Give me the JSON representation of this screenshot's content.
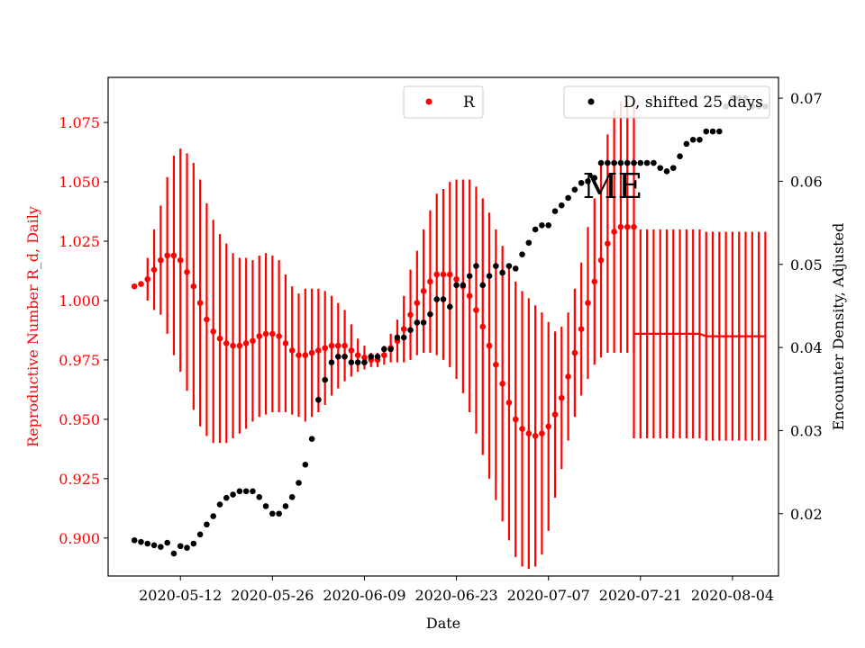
{
  "chart_data": {
    "type": "scatter",
    "xlabel": "Date",
    "ylabel_left": "Reproductive Number R_d, Daily",
    "ylabel_right": "Encounter Density, Adjusted",
    "annotation": "ME",
    "xlim": [
      "2020-05-01",
      "2020-08-11"
    ],
    "ylim_left": [
      0.884,
      1.094
    ],
    "ylim_right": [
      0.0125,
      0.0725
    ],
    "x_ticks": [
      "2020-05-12",
      "2020-05-26",
      "2020-06-09",
      "2020-06-23",
      "2020-07-07",
      "2020-07-21",
      "2020-08-04"
    ],
    "y_ticks_left": [
      0.9,
      0.925,
      0.95,
      0.975,
      1.0,
      1.025,
      1.05,
      1.075
    ],
    "y_tick_labels_left": [
      "0.900",
      "0.925",
      "0.950",
      "0.975",
      "1.000",
      "1.025",
      "1.050",
      "1.075"
    ],
    "y_ticks_right": [
      0.02,
      0.03,
      0.04,
      0.05,
      0.06,
      0.07
    ],
    "y_tick_labels_right": [
      "0.02",
      "0.03",
      "0.04",
      "0.05",
      "0.06",
      "0.07"
    ],
    "legend_left": {
      "label": "R",
      "color": "#ff0000",
      "placement": "top-center"
    },
    "legend_right": {
      "label": "D, shifted 25 days",
      "color": "#000000",
      "placement": "top-right"
    },
    "colors": {
      "R": "#ff0000",
      "D": "#000000",
      "left_axis": "#ff0000",
      "right_axis": "#000000"
    },
    "series": [
      {
        "name": "R",
        "axis": "left",
        "marker": "dot",
        "x": [
          "2020-05-05",
          "2020-05-06",
          "2020-05-07",
          "2020-05-08",
          "2020-05-09",
          "2020-05-10",
          "2020-05-11",
          "2020-05-12",
          "2020-05-13",
          "2020-05-14",
          "2020-05-15",
          "2020-05-16",
          "2020-05-17",
          "2020-05-18",
          "2020-05-19",
          "2020-05-20",
          "2020-05-21",
          "2020-05-22",
          "2020-05-23",
          "2020-05-24",
          "2020-05-25",
          "2020-05-26",
          "2020-05-27",
          "2020-05-28",
          "2020-05-29",
          "2020-05-30",
          "2020-05-31",
          "2020-06-01",
          "2020-06-02",
          "2020-06-03",
          "2020-06-04",
          "2020-06-05",
          "2020-06-06",
          "2020-06-07",
          "2020-06-08",
          "2020-06-09",
          "2020-06-10",
          "2020-06-11",
          "2020-06-12",
          "2020-06-13",
          "2020-06-14",
          "2020-06-15",
          "2020-06-16",
          "2020-06-17",
          "2020-06-18",
          "2020-06-19",
          "2020-06-20",
          "2020-06-21",
          "2020-06-22",
          "2020-06-23",
          "2020-06-24",
          "2020-06-25",
          "2020-06-26",
          "2020-06-27",
          "2020-06-28",
          "2020-06-29",
          "2020-06-30",
          "2020-07-01",
          "2020-07-02",
          "2020-07-03",
          "2020-07-04",
          "2020-07-05",
          "2020-07-06",
          "2020-07-07",
          "2020-07-08",
          "2020-07-09",
          "2020-07-10",
          "2020-07-11",
          "2020-07-12",
          "2020-07-13",
          "2020-07-14",
          "2020-07-15",
          "2020-07-16",
          "2020-07-17",
          "2020-07-18",
          "2020-07-19",
          "2020-07-20"
        ],
        "y": [
          1.006,
          1.007,
          1.009,
          1.013,
          1.017,
          1.019,
          1.019,
          1.017,
          1.012,
          1.006,
          0.999,
          0.992,
          0.987,
          0.984,
          0.982,
          0.981,
          0.981,
          0.982,
          0.983,
          0.985,
          0.986,
          0.986,
          0.985,
          0.982,
          0.979,
          0.977,
          0.977,
          0.978,
          0.979,
          0.98,
          0.981,
          0.981,
          0.981,
          0.979,
          0.977,
          0.976,
          0.975,
          0.975,
          0.977,
          0.98,
          0.983,
          0.988,
          0.994,
          0.999,
          1.004,
          1.008,
          1.011,
          1.011,
          1.011,
          1.009,
          1.006,
          1.002,
          0.996,
          0.989,
          0.981,
          0.973,
          0.965,
          0.957,
          0.95,
          0.946,
          0.944,
          0.943,
          0.944,
          0.947,
          0.952,
          0.959,
          0.968,
          0.978,
          0.988,
          0.999,
          1.008,
          1.017,
          1.024,
          1.029,
          1.031,
          1.031,
          1.031
        ],
        "y_low": [
          1.006,
          1.006,
          1.0,
          0.996,
          0.994,
          0.986,
          0.977,
          0.97,
          0.962,
          0.954,
          0.947,
          0.943,
          0.94,
          0.94,
          0.94,
          0.942,
          0.944,
          0.946,
          0.949,
          0.951,
          0.952,
          0.953,
          0.953,
          0.953,
          0.952,
          0.951,
          0.949,
          0.951,
          0.953,
          0.956,
          0.96,
          0.963,
          0.966,
          0.968,
          0.97,
          0.971,
          0.972,
          0.972,
          0.973,
          0.974,
          0.974,
          0.974,
          0.975,
          0.977,
          0.978,
          0.978,
          0.977,
          0.975,
          0.972,
          0.967,
          0.961,
          0.953,
          0.944,
          0.935,
          0.925,
          0.916,
          0.907,
          0.899,
          0.892,
          0.888,
          0.887,
          0.888,
          0.893,
          0.903,
          0.917,
          0.929,
          0.941,
          0.951,
          0.96,
          0.967,
          0.973,
          0.976,
          0.978,
          0.978,
          0.978,
          0.978,
          0.978
        ],
        "y_high": [
          1.006,
          1.008,
          1.018,
          1.03,
          1.04,
          1.052,
          1.061,
          1.064,
          1.062,
          1.058,
          1.051,
          1.041,
          1.034,
          1.028,
          1.024,
          1.02,
          1.018,
          1.018,
          1.017,
          1.019,
          1.02,
          1.019,
          1.017,
          1.011,
          1.006,
          1.003,
          1.005,
          1.005,
          1.005,
          1.004,
          1.002,
          0.999,
          0.996,
          0.99,
          0.984,
          0.981,
          0.978,
          0.978,
          0.981,
          0.986,
          0.992,
          1.002,
          1.013,
          1.021,
          1.03,
          1.038,
          1.045,
          1.047,
          1.05,
          1.051,
          1.051,
          1.051,
          1.048,
          1.043,
          1.037,
          1.03,
          1.023,
          1.015,
          1.008,
          1.004,
          1.001,
          0.998,
          0.995,
          0.991,
          0.987,
          0.989,
          0.995,
          1.005,
          1.016,
          1.031,
          1.043,
          1.058,
          1.07,
          1.08,
          1.084,
          1.084,
          1.084
        ]
      },
      {
        "name": "R",
        "axis": "left",
        "marker": "line",
        "x": [
          "2020-07-20",
          "2020-07-21",
          "2020-07-22",
          "2020-07-23",
          "2020-07-24",
          "2020-07-25",
          "2020-07-26",
          "2020-07-27",
          "2020-07-28",
          "2020-07-29",
          "2020-07-30",
          "2020-07-31",
          "2020-08-01",
          "2020-08-02",
          "2020-08-03",
          "2020-08-04",
          "2020-08-05",
          "2020-08-06",
          "2020-08-07",
          "2020-08-08",
          "2020-08-09"
        ],
        "y": [
          0.986,
          0.986,
          0.986,
          0.986,
          0.986,
          0.986,
          0.986,
          0.986,
          0.986,
          0.986,
          0.986,
          0.985,
          0.985,
          0.985,
          0.985,
          0.985,
          0.985,
          0.985,
          0.985,
          0.985,
          0.985
        ],
        "y_low": [
          0.942,
          0.942,
          0.942,
          0.942,
          0.942,
          0.942,
          0.942,
          0.942,
          0.942,
          0.942,
          0.942,
          0.941,
          0.941,
          0.941,
          0.941,
          0.941,
          0.941,
          0.941,
          0.941,
          0.941,
          0.941
        ],
        "y_high": [
          1.03,
          1.03,
          1.03,
          1.03,
          1.03,
          1.03,
          1.03,
          1.03,
          1.03,
          1.03,
          1.03,
          1.029,
          1.029,
          1.029,
          1.029,
          1.029,
          1.029,
          1.029,
          1.029,
          1.029,
          1.029
        ]
      },
      {
        "name": "D, shifted 25 days",
        "axis": "right",
        "marker": "dot",
        "x": [
          "2020-05-05",
          "2020-05-06",
          "2020-05-07",
          "2020-05-08",
          "2020-05-09",
          "2020-05-10",
          "2020-05-11",
          "2020-05-12",
          "2020-05-13",
          "2020-05-14",
          "2020-05-15",
          "2020-05-16",
          "2020-05-17",
          "2020-05-18",
          "2020-05-19",
          "2020-05-20",
          "2020-05-21",
          "2020-05-22",
          "2020-05-23",
          "2020-05-24",
          "2020-05-25",
          "2020-05-26",
          "2020-05-27",
          "2020-05-28",
          "2020-05-29",
          "2020-05-30",
          "2020-05-31",
          "2020-06-01",
          "2020-06-02",
          "2020-06-03",
          "2020-06-04",
          "2020-06-05",
          "2020-06-06",
          "2020-06-07",
          "2020-06-08",
          "2020-06-09",
          "2020-06-10",
          "2020-06-11",
          "2020-06-12",
          "2020-06-13",
          "2020-06-14",
          "2020-06-15",
          "2020-06-16",
          "2020-06-17",
          "2020-06-18",
          "2020-06-19",
          "2020-06-20",
          "2020-06-21",
          "2020-06-22",
          "2020-06-23",
          "2020-06-24",
          "2020-06-25",
          "2020-06-26",
          "2020-06-27",
          "2020-06-28",
          "2020-06-29",
          "2020-06-30",
          "2020-07-01",
          "2020-07-02",
          "2020-07-03",
          "2020-07-04",
          "2020-07-05",
          "2020-07-06",
          "2020-07-07",
          "2020-07-08",
          "2020-07-09",
          "2020-07-10",
          "2020-07-11",
          "2020-07-12",
          "2020-07-13",
          "2020-07-14",
          "2020-07-15",
          "2020-07-16",
          "2020-07-17",
          "2020-07-18",
          "2020-07-19",
          "2020-07-20",
          "2020-07-21",
          "2020-07-22",
          "2020-07-23",
          "2020-07-24",
          "2020-07-25",
          "2020-07-26",
          "2020-07-27",
          "2020-07-28",
          "2020-07-29",
          "2020-07-30",
          "2020-07-31",
          "2020-08-01",
          "2020-08-02",
          "2020-08-03",
          "2020-08-04",
          "2020-08-05",
          "2020-08-06",
          "2020-08-07",
          "2020-08-08",
          "2020-08-09"
        ],
        "y": [
          0.0168,
          0.0166,
          0.0164,
          0.0162,
          0.016,
          0.0165,
          0.0152,
          0.0161,
          0.0159,
          0.0164,
          0.0175,
          0.0187,
          0.0197,
          0.0211,
          0.0219,
          0.0223,
          0.0227,
          0.0227,
          0.0227,
          0.022,
          0.0209,
          0.02,
          0.02,
          0.0209,
          0.022,
          0.0237,
          0.0259,
          0.029,
          0.0337,
          0.0361,
          0.0382,
          0.0389,
          0.0389,
          0.0382,
          0.0382,
          0.0382,
          0.0389,
          0.0389,
          0.0398,
          0.0398,
          0.0412,
          0.0412,
          0.0421,
          0.043,
          0.043,
          0.044,
          0.0458,
          0.0458,
          0.0449,
          0.0475,
          0.0475,
          0.0486,
          0.0498,
          0.0475,
          0.0486,
          0.0498,
          0.049,
          0.0498,
          0.0495,
          0.0512,
          0.0526,
          0.0542,
          0.0547,
          0.0547,
          0.0564,
          0.0571,
          0.058,
          0.059,
          0.0598,
          0.06,
          0.0604,
          0.0622,
          0.0622,
          0.0622,
          0.0622,
          0.0622,
          0.0622,
          0.0622,
          0.0622,
          0.0622,
          0.0616,
          0.0612,
          0.0616,
          0.063,
          0.0645,
          0.065,
          0.065,
          0.066,
          0.066,
          0.066,
          0.069,
          0.07,
          0.07,
          0.07,
          0.069,
          0.069,
          0.069
        ]
      }
    ]
  }
}
